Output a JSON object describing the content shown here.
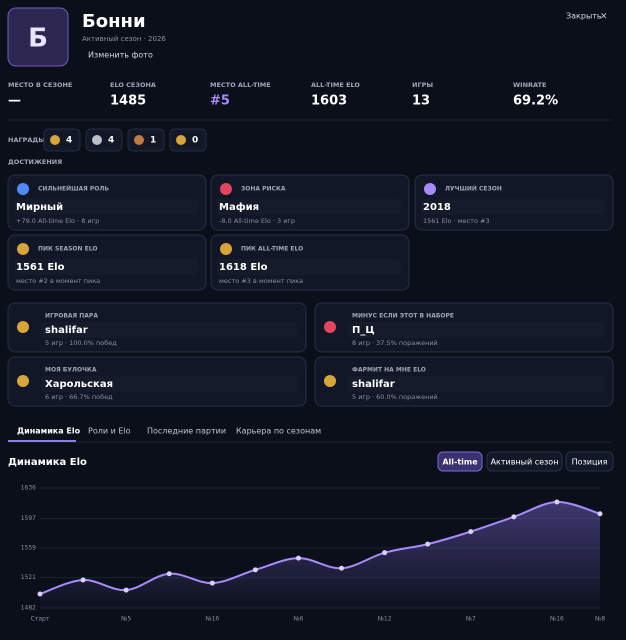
{
  "profile": {
    "avatar": "Б",
    "name": "Бонни",
    "season": "Активный сезон · 2026",
    "change_photo": "Изменить фото",
    "close": "Закрыть",
    "close_icon": "×"
  },
  "stats": [
    {
      "label": "МЕСТО В СЕЗОНЕ",
      "value": "—"
    },
    {
      "label": "ELO СЕЗОНА",
      "value": 1485
    },
    {
      "label": "МЕСТО ALL-TIME",
      "value": "#5"
    },
    {
      "label": "ALL-TIME ELO",
      "value": 1603
    },
    {
      "label": "ИГРЫ",
      "value": 13
    },
    {
      "label": "WINRATE",
      "value": "69.2%"
    }
  ],
  "awards": {
    "label": "НАГРАДЫ",
    "counts": [
      4,
      4,
      1,
      0
    ]
  },
  "achievements": {
    "label": "ДОСТИЖЕНИЯ",
    "cards": [
      {
        "label": "СИЛЬНЕЙШАЯ РОЛЬ",
        "value": "Мирный",
        "detail": "+79.0 All-time Elo · 8 игр"
      },
      {
        "label": "ЗОНА РИСКА",
        "value": "Мафия",
        "detail": "-8.0 All-time Elo · 3 игр"
      },
      {
        "label": "ЛУЧШИЙ СЕЗОН",
        "value": "2018",
        "detail": "1561 Elo · место #3"
      },
      {
        "label": "ПИК SEASON ELO",
        "value": "1561 Elo",
        "detail": "место #2 в момент пика"
      },
      {
        "label": "ПИК ALL-TIME ELO",
        "value": "1618 Elo",
        "detail": "место #3 в момент пика"
      }
    ]
  },
  "pairs": [
    {
      "label": "ИГРОВАЯ ПАРА",
      "value": "shalifar",
      "detail": "5 игр · 100.0% побед"
    },
    {
      "label": "МИНУС ЕСЛИ ЭТОТ В НАБОРЕ",
      "value": "П_Ц",
      "detail": "8 игр · 37.5% поражений"
    },
    {
      "label": "МОЯ БУЛОЧКА",
      "value": "Харольская",
      "detail": "6 игр · 66.7% побед"
    },
    {
      "label": "ФАРМИТ НА МНЕ ELO",
      "value": "shalifar",
      "detail": "5 игр · 60.0% поражений"
    }
  ],
  "tabs": [
    "Динамика Elo",
    "Роли и Elo",
    "Последние партии",
    "Карьера по сезонам"
  ],
  "chart_data": {
    "type": "line",
    "title": "Динамика Elo",
    "modes": [
      "All-time",
      "Активный сезон",
      "Позиция"
    ],
    "categories": [
      "Старт",
      null,
      "№5",
      null,
      "№16",
      null,
      "№6",
      null,
      "№12",
      null,
      "№7",
      null,
      "№16",
      "№8"
    ],
    "values": [
      1500,
      1518,
      1505,
      1526,
      1514,
      1531,
      1546,
      1533,
      1553,
      1564,
      1580,
      1599,
      1618,
      1603
    ],
    "color": "#a78bfa",
    "ylim": [
      1482,
      1636
    ],
    "yticks": [
      1482,
      1521,
      1559,
      1597,
      1636
    ],
    "grid": true
  }
}
